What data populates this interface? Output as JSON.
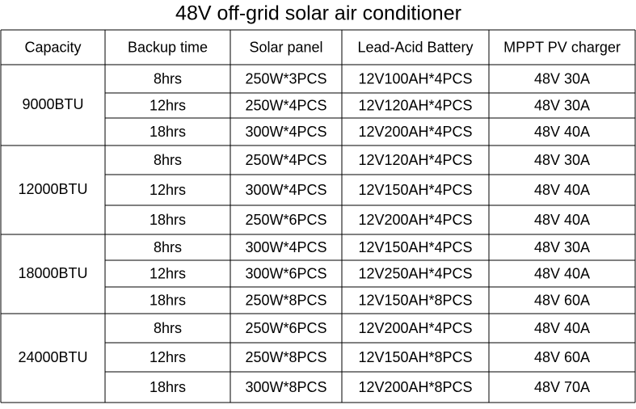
{
  "title": "48V off-grid solar air conditioner",
  "table": {
    "header": [
      "Capacity",
      "Backup time",
      "Solar panel",
      "Lead-Acid Battery",
      "MPPT PV charger"
    ],
    "groups": [
      {
        "capacity": "9000BTU",
        "rows": [
          [
            "8hrs",
            "250W*3PCS",
            "12V100AH*4PCS",
            "48V 30A"
          ],
          [
            "12hrs",
            "250W*4PCS",
            "12V120AH*4PCS",
            "48V 30A"
          ],
          [
            "18hrs",
            "300W*4PCS",
            "12V200AH*4PCS",
            "48V 40A"
          ]
        ]
      },
      {
        "capacity": "12000BTU",
        "rows": [
          [
            "8hrs",
            "250W*4PCS",
            "12V120AH*4PCS",
            "48V 30A"
          ],
          [
            "12hrs",
            "300W*4PCS",
            "12V150AH*4PCS",
            "48V 40A"
          ],
          [
            "18hrs",
            "250W*6PCS",
            "12V200AH*4PCS",
            "48V 40A"
          ]
        ]
      },
      {
        "capacity": "18000BTU",
        "rows": [
          [
            "8hrs",
            "300W*4PCS",
            "12V150AH*4PCS",
            "48V 30A"
          ],
          [
            "12hrs",
            "300W*6PCS",
            "12V250AH*4PCS",
            "48V 40A"
          ],
          [
            "18hrs",
            "250W*8PCS",
            "12V150AH*8PCS",
            "48V 60A"
          ]
        ]
      },
      {
        "capacity": "24000BTU",
        "rows": [
          [
            "8hrs",
            "250W*6PCS",
            "12V200AH*4PCS",
            "48V 40A"
          ],
          [
            "12hrs",
            "250W*8PCS",
            "12V150AH*8PCS",
            "48V 60A"
          ],
          [
            "18hrs",
            "300W*8PCS",
            "12V200AH*8PCS",
            "48V 70A"
          ]
        ]
      }
    ]
  }
}
